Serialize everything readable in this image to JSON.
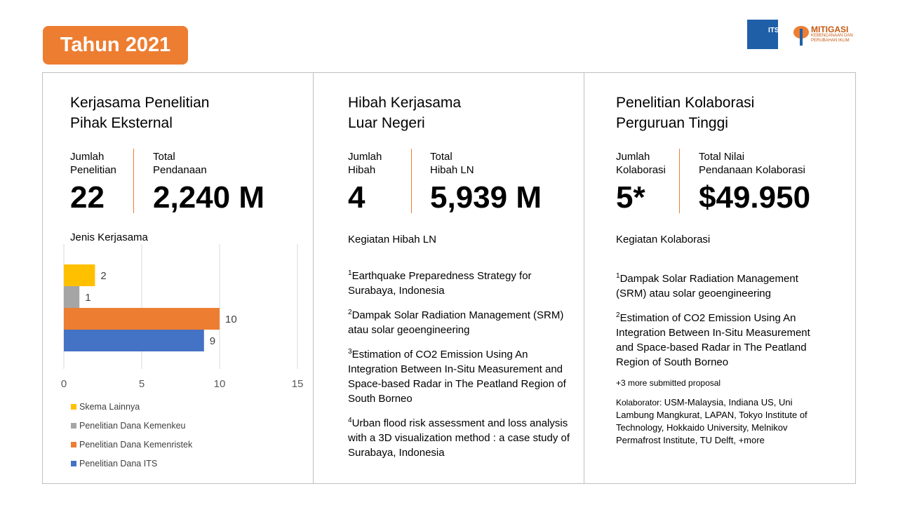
{
  "header": {
    "year_badge": "Tahun 2021",
    "logo_its": "ITS Institut Teknologi Sepuluh Nopember",
    "logo_mitigasi": "MITIGASI KEBENCANAAN DAN PERUBAHAN IKLIM INSTITUT TEKNOLOGI SEPULUH NOPEMBER",
    "logo_its_short": "ITS",
    "logo_mit_title": "MITIGASI",
    "logo_mit_sub1": "KEBENCANAAN DAN",
    "logo_mit_sub2": "PERUBAHAN IKLIM"
  },
  "panels": [
    {
      "title1": "Kerjasama Penelitian",
      "title2": "Pihak Eksternal",
      "stat1_l1": "Jumlah",
      "stat1_l2": "Penelitian",
      "stat1_value": "22",
      "stat2_l1": "Total",
      "stat2_l2": "Pendanaan",
      "stat2_value": "2,240 M"
    },
    {
      "title1": "Hibah Kerjasama",
      "title2": "Luar Negeri",
      "stat1_l1": "Jumlah",
      "stat1_l2": "Hibah",
      "stat1_value": "4",
      "stat2_l1": "Total",
      "stat2_l2": "Hibah LN",
      "stat2_value": "5,939 M",
      "subtitle": "Kegiatan Hibah LN",
      "items": [
        "Earthquake Preparedness Strategy for Surabaya, Indonesia",
        "Dampak Solar Radiation Management (SRM) atau solar geoengineering",
        "Estimation of CO2 Emission Using An Integration Between In-Situ Measurement and Space-based Radar in The Peatland Region of South Borneo",
        "Urban flood risk assessment and loss analysis with a 3D visualization method : a case study of Surabaya, Indonesia"
      ],
      "item_nums": [
        "1",
        "2",
        "3",
        "4"
      ]
    },
    {
      "title1": "Penelitian Kolaborasi",
      "title2": "Perguruan Tinggi",
      "stat1_l1": "Jumlah",
      "stat1_l2": "Kolaborasi",
      "stat1_value": "5*",
      "stat2_l1": "Total Nilai",
      "stat2_l2": "Pendanaan Kolaborasi",
      "stat2_value": "$49.950",
      "subtitle": "Kegiatan Kolaborasi",
      "items": [
        "Dampak Solar Radiation Management (SRM) atau solar geoengineering",
        "Estimation of CO2 Emission Using An Integration Between In-Situ Measurement and Space-based Radar in The Peatland Region of South Borneo"
      ],
      "item_nums": [
        "1",
        "2"
      ],
      "more": "+3 more submitted proposal",
      "kolaborator_label": "Kolaborator:",
      "kolaborator": "USM-Malaysia, Indiana US, Uni Lambung Mangkurat, LAPAN, Tokyo Institute of Technology, Hokkaido University, Melnikov Permafrost Institute, TU Delft, +more"
    }
  ],
  "chart_data": {
    "type": "bar",
    "orientation": "horizontal",
    "title": "Jenis Kerjasama",
    "categories": [
      "Skema Lainnya",
      "Penelitian Dana Kemenkeu",
      "Penelitian Dana Kemenristek",
      "Penelitian Dana ITS"
    ],
    "values": [
      2,
      1,
      10,
      9
    ],
    "colors": [
      "#ffc000",
      "#a5a5a5",
      "#ed7d31",
      "#4472c4"
    ],
    "xlim": [
      0,
      15
    ],
    "xticks": [
      0,
      5,
      10,
      15
    ],
    "grid": true,
    "legend_position": "bottom"
  }
}
